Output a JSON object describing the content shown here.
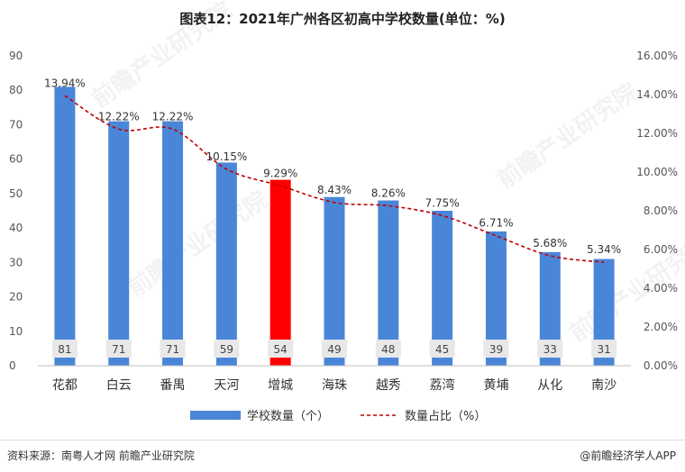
{
  "title": "图表12：2021年广州各区初高中学校数量(单位：%)",
  "chart_data": {
    "type": "bar",
    "categories": [
      "花都",
      "白云",
      "番禺",
      "天河",
      "增城",
      "海珠",
      "越秀",
      "荔湾",
      "黄埔",
      "从化",
      "南沙"
    ],
    "series": [
      {
        "name": "学校数量（个）",
        "type": "bar",
        "values": [
          81,
          71,
          71,
          59,
          54,
          49,
          48,
          45,
          39,
          33,
          31
        ],
        "color": "#4a86d8",
        "highlight": {
          "index": 4,
          "color": "#ff0000"
        }
      },
      {
        "name": "数量占比（%）",
        "type": "line",
        "values": [
          13.94,
          12.22,
          12.22,
          10.15,
          9.29,
          8.43,
          8.26,
          7.75,
          6.71,
          5.68,
          5.34
        ],
        "labels": [
          "13.94%",
          "12.22%",
          "12.22%",
          "10.15%",
          "9.29%",
          "8.43%",
          "8.26%",
          "7.75%",
          "6.71%",
          "5.68%",
          "5.34%"
        ],
        "color": "#c00000",
        "dashed": true
      }
    ],
    "y_left": {
      "ticks": [
        "0",
        "10",
        "20",
        "30",
        "40",
        "50",
        "60",
        "70",
        "80",
        "90"
      ],
      "ylim": [
        0,
        90
      ]
    },
    "y_right": {
      "ticks": [
        "0.00%",
        "2.00%",
        "4.00%",
        "6.00%",
        "8.00%",
        "10.00%",
        "12.00%",
        "14.00%",
        "16.00%"
      ],
      "ylim": [
        0,
        16
      ]
    },
    "legend_position": "bottom",
    "grid": false
  },
  "watermark": "前瞻产业研究院",
  "footer": {
    "source": "资料来源：南粤人才网 前瞻产业研究院",
    "brand": "@前瞻经济学人APP"
  }
}
